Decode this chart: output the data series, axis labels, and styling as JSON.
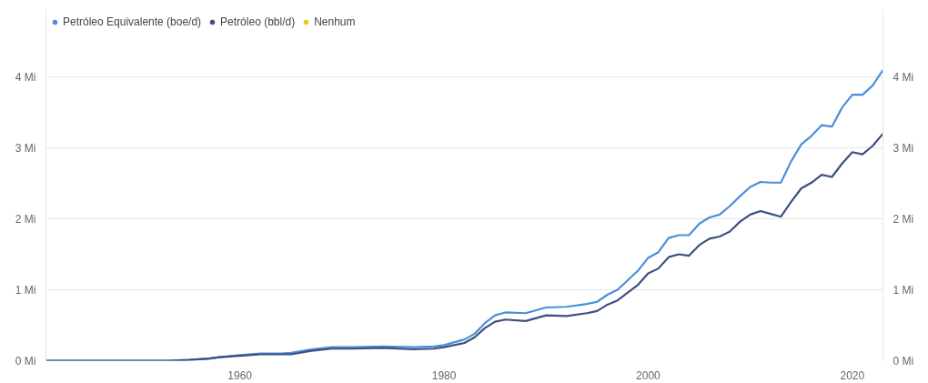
{
  "chart_data": {
    "type": "line",
    "x": [
      1941,
      1945,
      1950,
      1953,
      1955,
      1957,
      1958,
      1960,
      1962,
      1964,
      1965,
      1967,
      1969,
      1971,
      1974,
      1977,
      1979,
      1980,
      1982,
      1983,
      1984,
      1985,
      1986,
      1988,
      1990,
      1992,
      1994,
      1995,
      1996,
      1997,
      1999,
      2000,
      2001,
      2002,
      2003,
      2004,
      2005,
      2006,
      2007,
      2008,
      2009,
      2010,
      2011,
      2012,
      2013,
      2014,
      2015,
      2016,
      2017,
      2018,
      2019,
      2020,
      2021,
      2022,
      2023
    ],
    "series": [
      {
        "name": "Petróleo Equivalente (boe/d)",
        "color": "#4a90d9",
        "values": [
          0,
          0,
          0,
          0,
          0.01,
          0.03,
          0.05,
          0.08,
          0.1,
          0.1,
          0.11,
          0.16,
          0.19,
          0.19,
          0.2,
          0.19,
          0.2,
          0.22,
          0.3,
          0.38,
          0.53,
          0.64,
          0.68,
          0.67,
          0.75,
          0.76,
          0.8,
          0.83,
          0.93,
          1.0,
          1.27,
          1.45,
          1.53,
          1.73,
          1.77,
          1.77,
          1.93,
          2.02,
          2.06,
          2.18,
          2.32,
          2.45,
          2.52,
          2.51,
          2.51,
          2.81,
          3.05,
          3.17,
          3.32,
          3.3,
          3.57,
          3.75,
          3.75,
          3.88,
          4.1
        ]
      },
      {
        "name": "Petróleo (bbl/d)",
        "color": "#3f4f7f",
        "values": [
          0,
          0,
          0,
          0,
          0.01,
          0.03,
          0.05,
          0.07,
          0.09,
          0.09,
          0.09,
          0.14,
          0.17,
          0.17,
          0.18,
          0.16,
          0.17,
          0.19,
          0.25,
          0.33,
          0.46,
          0.55,
          0.58,
          0.56,
          0.64,
          0.63,
          0.67,
          0.7,
          0.79,
          0.85,
          1.07,
          1.23,
          1.3,
          1.46,
          1.5,
          1.48,
          1.63,
          1.72,
          1.75,
          1.82,
          1.96,
          2.06,
          2.11,
          2.07,
          2.03,
          2.24,
          2.43,
          2.51,
          2.62,
          2.59,
          2.78,
          2.94,
          2.91,
          3.03,
          3.2
        ]
      },
      {
        "name": "Nenhum",
        "color": "#f2c80f",
        "values": [
          null,
          null,
          null,
          null,
          null,
          null,
          null,
          null,
          null,
          null,
          null,
          null,
          null,
          null,
          null,
          null,
          null,
          null,
          null,
          null,
          null,
          null,
          null,
          null,
          null,
          null,
          null,
          null,
          null,
          null,
          null,
          null,
          null,
          null,
          null,
          null,
          null,
          null,
          null,
          null,
          null,
          null,
          null,
          null,
          null,
          null,
          null,
          null,
          null,
          null,
          null,
          null,
          null,
          null,
          null
        ]
      }
    ],
    "xlim": [
      1941,
      2023
    ],
    "xticks": [
      1960,
      1980,
      2000,
      2020
    ],
    "ylim": [
      0,
      4.95
    ],
    "yticks": [
      {
        "value": 0,
        "label": "0 Mi"
      },
      {
        "value": 1,
        "label": "1 Mi"
      },
      {
        "value": 2,
        "label": "2 Mi"
      },
      {
        "value": 3,
        "label": "3 Mi"
      },
      {
        "value": 4,
        "label": "4 Mi"
      }
    ],
    "y2lim": [
      0,
      4.95
    ],
    "y2ticks": [
      {
        "value": 0,
        "label": "0 Mi"
      },
      {
        "value": 1,
        "label": "1 Mi"
      },
      {
        "value": 2,
        "label": "2 Mi"
      },
      {
        "value": 3,
        "label": "3 Mi"
      },
      {
        "value": 4,
        "label": "4 Mi"
      }
    ],
    "grid": "y",
    "legend": "top left",
    "marker": "none",
    "line_style": "solid"
  }
}
